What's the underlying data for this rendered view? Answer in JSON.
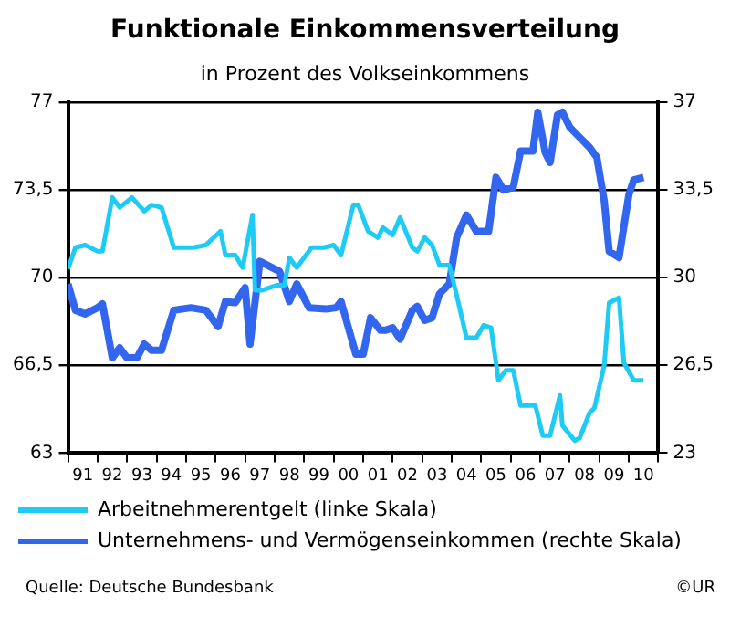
{
  "chart_data": {
    "type": "line",
    "title": "Funktionale Einkommensverteilung",
    "subtitle": "in Prozent des Volkseinkommens",
    "xlim": [
      "1991-01",
      "2011-01"
    ],
    "xticks": [
      {
        "value": "1991-01",
        "label": null
      },
      {
        "value": "1991-07",
        "label": "91"
      },
      {
        "value": "1992-01",
        "label": null
      },
      {
        "value": "1992-07",
        "label": "92"
      },
      {
        "value": "1993-01",
        "label": null
      },
      {
        "value": "1993-07",
        "label": "93"
      },
      {
        "value": "1994-01",
        "label": null
      },
      {
        "value": "1994-07",
        "label": "94"
      },
      {
        "value": "1995-01",
        "label": null
      },
      {
        "value": "1995-07",
        "label": "95"
      },
      {
        "value": "1996-01",
        "label": null
      },
      {
        "value": "1996-07",
        "label": "96"
      },
      {
        "value": "1997-01",
        "label": null
      },
      {
        "value": "1997-07",
        "label": "97"
      },
      {
        "value": "1998-01",
        "label": null
      },
      {
        "value": "1998-07",
        "label": "98"
      },
      {
        "value": "1999-01",
        "label": null
      },
      {
        "value": "1999-07",
        "label": "99"
      },
      {
        "value": "2000-01",
        "label": null
      },
      {
        "value": "2000-07",
        "label": "00"
      },
      {
        "value": "2001-01",
        "label": null
      },
      {
        "value": "2001-07",
        "label": "01"
      },
      {
        "value": "2002-01",
        "label": null
      },
      {
        "value": "2002-07",
        "label": "02"
      },
      {
        "value": "2003-01",
        "label": null
      },
      {
        "value": "2003-07",
        "label": "03"
      },
      {
        "value": "2004-01",
        "label": null
      },
      {
        "value": "2004-07",
        "label": "04"
      },
      {
        "value": "2005-01",
        "label": null
      },
      {
        "value": "2005-07",
        "label": "05"
      },
      {
        "value": "2006-01",
        "label": null
      },
      {
        "value": "2006-07",
        "label": "06"
      },
      {
        "value": "2007-01",
        "label": null
      },
      {
        "value": "2007-07",
        "label": "07"
      },
      {
        "value": "2008-01",
        "label": null
      },
      {
        "value": "2008-07",
        "label": "08"
      },
      {
        "value": "2009-01",
        "label": null
      },
      {
        "value": "2009-07",
        "label": "09"
      },
      {
        "value": "2010-01",
        "label": null
      },
      {
        "value": "2010-07",
        "label": "10"
      },
      {
        "value": "2011-01",
        "label": null
      }
    ],
    "ylim": [
      63,
      77
    ],
    "yticks": [
      63,
      {
        "value": 66.5,
        "label": "66,5"
      },
      70,
      {
        "value": 73.5,
        "label": "73,5"
      },
      77
    ],
    "y2lim": [
      23,
      37
    ],
    "y2ticks": [
      23,
      {
        "value": 26.5,
        "label": "26,5"
      },
      30,
      {
        "value": 33.5,
        "label": "33,5"
      },
      37
    ],
    "grid": "y",
    "legend": "bottom",
    "marker": "none",
    "line_style": "solid",
    "series": [
      {
        "name": "Arbeitnehmerentgelt (linke Skala)",
        "color": "#1ecbf5",
        "axis": "y",
        "x": [
          "1991-01",
          "1991-04",
          "1991-08",
          "1992-01",
          "1992-03",
          "1992-07",
          "1992-10",
          "1993-03",
          "1993-08",
          "1993-11",
          "1994-03",
          "1994-08",
          "1995-04",
          "1995-09",
          "1996-03",
          "1996-05",
          "1996-09",
          "1996-12",
          "1997-04",
          "1997-05",
          "1997-08",
          "1998-02",
          "1998-05",
          "1998-07",
          "1998-10",
          "1999-04",
          "1999-09",
          "2000-01",
          "2000-04",
          "2000-09",
          "2000-11",
          "2001-03",
          "2001-07",
          "2001-09",
          "2002-01",
          "2002-04",
          "2002-09",
          "2002-11",
          "2003-02",
          "2003-05",
          "2003-08",
          "2003-12",
          "2004-03",
          "2004-07",
          "2004-11",
          "2005-02",
          "2005-05",
          "2005-08",
          "2005-11",
          "2006-02",
          "2006-05",
          "2006-11",
          "2007-02",
          "2007-05",
          "2007-09",
          "2007-10",
          "2008-03",
          "2008-05",
          "2008-09",
          "2008-11",
          "2009-03",
          "2009-05",
          "2009-09",
          "2009-11",
          "2010-03",
          "2010-07"
        ],
        "values": [
          70.35,
          71.2,
          71.3,
          71.05,
          71.05,
          73.2,
          72.8,
          73.2,
          72.65,
          72.9,
          72.8,
          71.2,
          71.2,
          71.3,
          71.85,
          70.9,
          70.9,
          70.4,
          72.5,
          69.5,
          69.5,
          69.7,
          69.7,
          70.8,
          70.4,
          71.2,
          71.2,
          71.3,
          70.9,
          72.9,
          72.9,
          71.85,
          71.6,
          72.0,
          71.7,
          72.4,
          71.2,
          71.05,
          71.6,
          71.3,
          70.5,
          70.5,
          69.3,
          67.6,
          67.6,
          68.1,
          68.0,
          65.9,
          66.3,
          66.3,
          64.9,
          64.9,
          63.7,
          63.7,
          65.3,
          64.1,
          63.5,
          63.6,
          64.6,
          64.8,
          66.5,
          69.0,
          69.2,
          66.6,
          65.9,
          65.9
        ]
      },
      {
        "name": "Unternehmens- und Vermögenseinkommen (rechte Skala)",
        "color": "#3366ee",
        "axis": "y2",
        "x": [
          "1991-01",
          "1991-04",
          "1991-08",
          "1992-01",
          "1992-03",
          "1992-07",
          "1992-10",
          "1993-01",
          "1993-05",
          "1993-08",
          "1993-11",
          "1994-03",
          "1994-08",
          "1995-03",
          "1995-09",
          "1996-02",
          "1996-05",
          "1996-09",
          "1997-01",
          "1997-03",
          "1997-07",
          "1997-09",
          "1998-03",
          "1998-07",
          "1998-10",
          "1999-03",
          "1999-10",
          "2000-02",
          "2000-04",
          "2000-10",
          "2001-01",
          "2001-04",
          "2001-08",
          "2001-10",
          "2002-01",
          "2002-04",
          "2002-09",
          "2002-11",
          "2003-02",
          "2003-05",
          "2003-08",
          "2003-12",
          "2004-03",
          "2004-07",
          "2004-11",
          "2005-04",
          "2005-07",
          "2005-10",
          "2006-02",
          "2006-05",
          "2006-10",
          "2006-12",
          "2007-03",
          "2007-05",
          "2007-08",
          "2007-10",
          "2008-01",
          "2008-04",
          "2008-09",
          "2008-12",
          "2009-03",
          "2009-05",
          "2009-09",
          "2010-01",
          "2010-03",
          "2010-07"
        ],
        "values": [
          29.75,
          28.7,
          28.55,
          28.8,
          28.95,
          26.8,
          27.2,
          26.8,
          26.8,
          27.35,
          27.1,
          27.1,
          28.7,
          28.8,
          28.7,
          28.05,
          29.05,
          29.0,
          29.6,
          27.35,
          30.65,
          30.55,
          30.25,
          29.05,
          29.75,
          28.8,
          28.75,
          28.8,
          29.05,
          26.95,
          26.95,
          28.4,
          27.9,
          27.9,
          28.0,
          27.55,
          28.7,
          28.85,
          28.3,
          28.4,
          29.35,
          29.75,
          31.6,
          32.5,
          31.85,
          31.85,
          34.0,
          33.5,
          33.6,
          35.05,
          35.05,
          36.6,
          35.0,
          34.6,
          36.5,
          36.6,
          36.0,
          35.7,
          35.2,
          34.8,
          33.05,
          31.05,
          30.8,
          33.3,
          33.9,
          34.0
        ]
      }
    ],
    "annotations": [
      "Quelle: Deutsche Bundesbank",
      "©UR"
    ]
  }
}
